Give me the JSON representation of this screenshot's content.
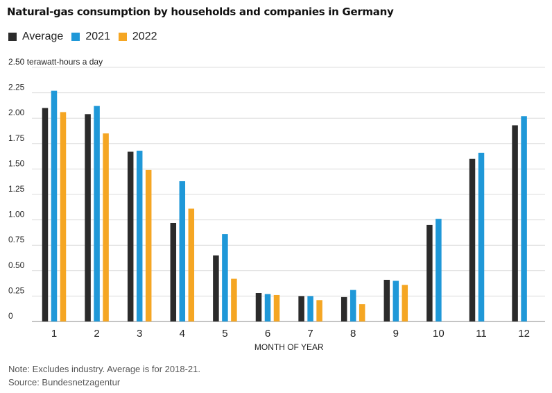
{
  "title": "Natural-gas consumption by households and companies in Germany",
  "footer": {
    "note": "Note: Excludes industry. Average is for 2018-21.",
    "source": "Source: Bundesnetzagentur"
  },
  "colors": {
    "Average": "#2b2b2b",
    "2021": "#1f98d8",
    "2022": "#f5a623",
    "grid": "#dcdcdc",
    "axis": "#888888"
  },
  "chart_data": {
    "type": "bar",
    "title": "Natural-gas consumption by households and companies in Germany",
    "xlabel": "MONTH OF YEAR",
    "ylabel": "terawatt-hours a day",
    "ylim": [
      0,
      2.5
    ],
    "yticks": [
      0,
      0.25,
      0.5,
      0.75,
      1.0,
      1.25,
      1.5,
      1.75,
      2.0,
      2.25,
      2.5
    ],
    "ytick_labels": [
      "0",
      "0.25",
      "0.50",
      "0.75",
      "1.00",
      "1.25",
      "1.50",
      "1.75",
      "2.00",
      "2.25",
      "2.50"
    ],
    "grid": true,
    "legend": "top-left",
    "categories": [
      "1",
      "2",
      "3",
      "4",
      "5",
      "6",
      "7",
      "8",
      "9",
      "10",
      "11",
      "12"
    ],
    "series": [
      {
        "name": "Average",
        "values": [
          2.1,
          2.04,
          1.67,
          0.97,
          0.65,
          0.28,
          0.25,
          0.24,
          0.41,
          0.95,
          1.6,
          1.93
        ]
      },
      {
        "name": "2021",
        "values": [
          2.27,
          2.12,
          1.68,
          1.38,
          0.86,
          0.27,
          0.25,
          0.31,
          0.4,
          1.01,
          1.66,
          2.02
        ]
      },
      {
        "name": "2022",
        "values": [
          2.06,
          1.85,
          1.49,
          1.11,
          0.42,
          0.26,
          0.21,
          0.17,
          0.36,
          null,
          null,
          null
        ]
      }
    ]
  }
}
